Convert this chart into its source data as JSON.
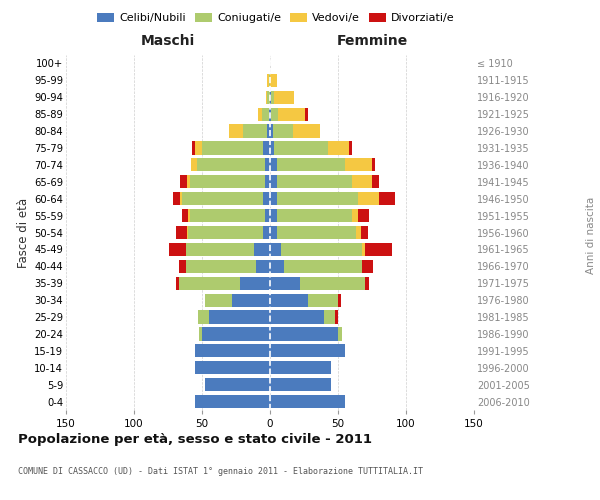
{
  "age_groups": [
    "0-4",
    "5-9",
    "10-14",
    "15-19",
    "20-24",
    "25-29",
    "30-34",
    "35-39",
    "40-44",
    "45-49",
    "50-54",
    "55-59",
    "60-64",
    "65-69",
    "70-74",
    "75-79",
    "80-84",
    "85-89",
    "90-94",
    "95-99",
    "100+"
  ],
  "birth_years": [
    "2006-2010",
    "2001-2005",
    "1996-2000",
    "1991-1995",
    "1986-1990",
    "1981-1985",
    "1976-1980",
    "1971-1975",
    "1966-1970",
    "1961-1965",
    "1956-1960",
    "1951-1955",
    "1946-1950",
    "1941-1945",
    "1936-1940",
    "1931-1935",
    "1926-1930",
    "1921-1925",
    "1916-1920",
    "1911-1915",
    "≤ 1910"
  ],
  "maschi": {
    "celibi": [
      55,
      48,
      55,
      55,
      50,
      45,
      28,
      22,
      10,
      12,
      5,
      4,
      5,
      4,
      4,
      5,
      2,
      1,
      0,
      0,
      0
    ],
    "coniugati": [
      0,
      0,
      0,
      0,
      2,
      8,
      20,
      45,
      52,
      50,
      55,
      55,
      60,
      55,
      50,
      45,
      18,
      5,
      2,
      1,
      0
    ],
    "vedovi": [
      0,
      0,
      0,
      0,
      0,
      0,
      0,
      0,
      0,
      0,
      1,
      1,
      1,
      2,
      4,
      5,
      10,
      3,
      1,
      1,
      0
    ],
    "divorziati": [
      0,
      0,
      0,
      0,
      0,
      0,
      0,
      2,
      5,
      12,
      8,
      5,
      5,
      5,
      0,
      2,
      0,
      0,
      0,
      0,
      0
    ]
  },
  "femmine": {
    "nubili": [
      55,
      45,
      45,
      55,
      50,
      40,
      28,
      22,
      10,
      8,
      5,
      5,
      5,
      5,
      5,
      3,
      2,
      1,
      1,
      0,
      0
    ],
    "coniugate": [
      0,
      0,
      0,
      0,
      3,
      8,
      22,
      48,
      58,
      60,
      58,
      55,
      60,
      55,
      50,
      40,
      15,
      5,
      2,
      0,
      0
    ],
    "vedove": [
      0,
      0,
      0,
      0,
      0,
      0,
      0,
      0,
      0,
      2,
      4,
      5,
      15,
      15,
      20,
      15,
      20,
      20,
      15,
      5,
      0
    ],
    "divorziate": [
      0,
      0,
      0,
      0,
      0,
      2,
      2,
      3,
      8,
      20,
      5,
      8,
      12,
      5,
      2,
      2,
      0,
      2,
      0,
      0,
      0
    ]
  },
  "colors": {
    "celibi": "#4B7BBE",
    "coniugati": "#AECB6E",
    "vedovi": "#F5C842",
    "divorziati": "#CC1111"
  },
  "xlim": 150,
  "title": "Popolazione per età, sesso e stato civile - 2011",
  "subtitle": "COMUNE DI CASSACCO (UD) - Dati ISTAT 1° gennaio 2011 - Elaborazione TUTTITALIA.IT",
  "ylabel_left": "Fasce di età",
  "ylabel_right": "Anni di nascita",
  "xlabel_left": "Maschi",
  "xlabel_right": "Femmine",
  "bg_color": "#FFFFFF",
  "grid_color": "#BBBBBB"
}
